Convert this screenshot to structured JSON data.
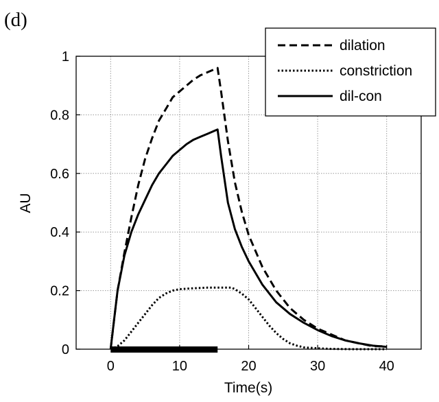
{
  "panel_label": "(d)",
  "chart_data": {
    "type": "line",
    "xlabel": "Time(s)",
    "ylabel": "AU",
    "xlim": [
      -5,
      45
    ],
    "ylim": [
      0,
      1
    ],
    "xticks": [
      0,
      10,
      20,
      30,
      40
    ],
    "yticks": [
      0,
      0.2,
      0.4,
      0.6,
      0.8,
      1
    ],
    "xtick_labels": [
      "0",
      "10",
      "20",
      "30",
      "40"
    ],
    "ytick_labels": [
      "0",
      "0.2",
      "0.4",
      "0.6",
      "0.8",
      "1"
    ],
    "grid": true,
    "legend_position": "top-right",
    "stimulus_bar": {
      "x_start": 0,
      "x_end": 15.5
    },
    "series": [
      {
        "name": "dilation",
        "style": "dashed",
        "x": [
          0,
          0.5,
          1,
          2,
          3,
          4,
          5,
          6,
          7,
          8,
          9,
          10,
          11,
          12,
          13,
          14,
          15,
          15.5,
          16,
          17,
          18,
          19,
          20,
          22,
          24,
          26,
          28,
          30,
          32,
          34,
          36,
          38,
          40
        ],
        "y": [
          0,
          0.1,
          0.2,
          0.33,
          0.45,
          0.56,
          0.65,
          0.72,
          0.78,
          0.82,
          0.86,
          0.88,
          0.9,
          0.92,
          0.935,
          0.945,
          0.955,
          0.96,
          0.88,
          0.71,
          0.57,
          0.47,
          0.39,
          0.28,
          0.2,
          0.14,
          0.1,
          0.07,
          0.05,
          0.03,
          0.02,
          0.01,
          0.01
        ]
      },
      {
        "name": "constriction",
        "style": "dotted",
        "x": [
          0,
          1,
          2,
          3,
          4,
          5,
          6,
          7,
          8,
          9,
          10,
          12,
          14,
          16,
          17.5,
          18,
          19,
          20,
          21,
          22,
          23,
          24,
          25,
          26,
          27,
          28,
          30,
          32,
          35,
          40
        ],
        "y": [
          0,
          0.01,
          0.03,
          0.06,
          0.09,
          0.12,
          0.15,
          0.175,
          0.19,
          0.2,
          0.205,
          0.208,
          0.21,
          0.21,
          0.21,
          0.205,
          0.19,
          0.17,
          0.14,
          0.11,
          0.08,
          0.055,
          0.035,
          0.02,
          0.012,
          0.006,
          0.003,
          0.001,
          0,
          0
        ]
      },
      {
        "name": "dil-con",
        "style": "solid",
        "x": [
          0,
          0.5,
          1,
          2,
          3,
          4,
          5,
          6,
          7,
          8,
          9,
          10,
          11,
          12,
          13,
          14,
          15,
          15.5,
          16,
          17,
          18,
          19,
          20,
          22,
          24,
          26,
          28,
          30,
          32,
          34,
          36,
          38,
          40
        ],
        "y": [
          0,
          0.1,
          0.2,
          0.32,
          0.4,
          0.46,
          0.51,
          0.56,
          0.6,
          0.63,
          0.66,
          0.68,
          0.7,
          0.715,
          0.725,
          0.735,
          0.745,
          0.75,
          0.66,
          0.5,
          0.41,
          0.35,
          0.3,
          0.22,
          0.16,
          0.12,
          0.09,
          0.065,
          0.045,
          0.03,
          0.02,
          0.012,
          0.008
        ]
      }
    ]
  }
}
